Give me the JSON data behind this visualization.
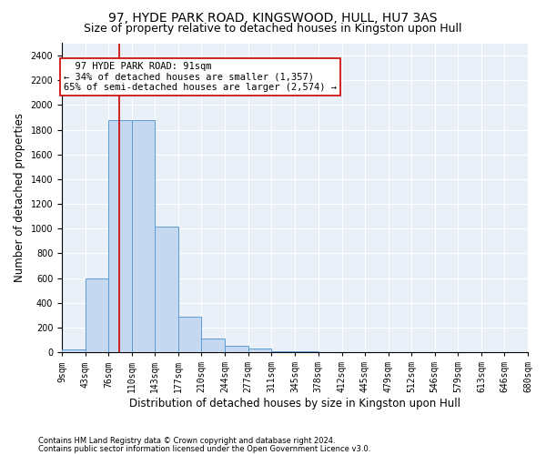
{
  "title": "97, HYDE PARK ROAD, KINGSWOOD, HULL, HU7 3AS",
  "subtitle": "Size of property relative to detached houses in Kingston upon Hull",
  "xlabel": "Distribution of detached houses by size in Kingston upon Hull",
  "ylabel": "Number of detached properties",
  "footer1": "Contains HM Land Registry data © Crown copyright and database right 2024.",
  "footer2": "Contains public sector information licensed under the Open Government Licence v3.0.",
  "bin_edges": [
    9,
    43,
    76,
    110,
    143,
    177,
    210,
    244,
    277,
    311,
    345,
    378,
    412,
    445,
    479,
    512,
    546,
    579,
    613,
    646,
    680
  ],
  "bar_heights": [
    25,
    600,
    1880,
    1880,
    1020,
    285,
    115,
    55,
    30,
    10,
    5,
    3,
    2,
    1,
    1,
    0,
    0,
    0,
    0,
    0
  ],
  "bar_color": "#c5d8f0",
  "bar_edge_color": "#5b9bd5",
  "property_size": 91,
  "red_line_color": "#cc0000",
  "annotation_line1": "  97 HYDE PARK ROAD: 91sqm",
  "annotation_line2": "← 34% of detached houses are smaller (1,357)",
  "annotation_line3": "65% of semi-detached houses are larger (2,574) →",
  "annotation_box_color": "#ffffff",
  "annotation_edge_color": "#cc0000",
  "ylim": [
    0,
    2500
  ],
  "yticks": [
    0,
    200,
    400,
    600,
    800,
    1000,
    1200,
    1400,
    1600,
    1800,
    2000,
    2200,
    2400
  ],
  "tick_labels": [
    "9sqm",
    "43sqm",
    "76sqm",
    "110sqm",
    "143sqm",
    "177sqm",
    "210sqm",
    "244sqm",
    "277sqm",
    "311sqm",
    "345sqm",
    "378sqm",
    "412sqm",
    "445sqm",
    "479sqm",
    "512sqm",
    "546sqm",
    "579sqm",
    "613sqm",
    "646sqm",
    "680sqm"
  ],
  "bg_color": "#eaf0f8",
  "grid_color": "#ffffff",
  "title_fontsize": 10,
  "subtitle_fontsize": 9,
  "axis_label_fontsize": 8.5,
  "tick_fontsize": 7,
  "annotation_fontsize": 7.5,
  "footer_fontsize": 6
}
